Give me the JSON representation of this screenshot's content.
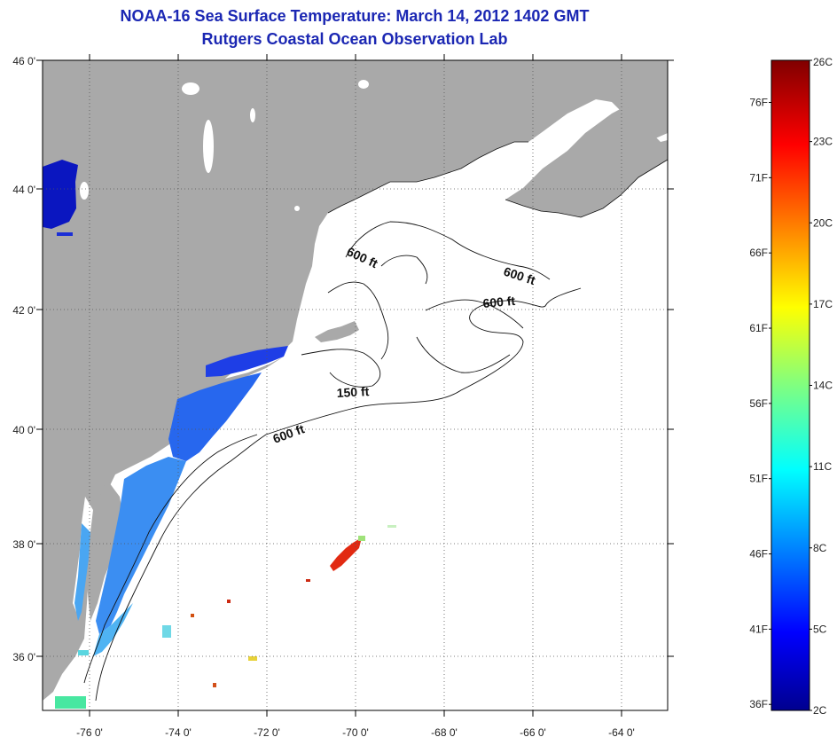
{
  "header": {
    "title": "NOAA-16 Sea Surface Temperature:  March 14, 2012 1402 GMT",
    "subtitle": "Rutgers Coastal Ocean Observation Lab"
  },
  "map": {
    "lon_range": [
      -77,
      -63
    ],
    "lat_range": [
      35,
      46
    ],
    "x_ticks": [
      "-76 0'",
      "-74 0'",
      "-72 0'",
      "-70 0'",
      "-68 0'",
      "-66 0'",
      "-64 0'"
    ],
    "y_ticks": [
      "46 0'",
      "44 0'",
      "42 0'",
      "40 0'",
      "38 0'",
      "36 0'"
    ],
    "contour_labels": [
      "600 ft",
      "600 ft",
      "600 ft",
      "150 ft",
      "600 ft"
    ],
    "colors": {
      "land": "#a9a9a9",
      "ocean": "#ffffff",
      "grid": "#555555"
    }
  },
  "colorbar": {
    "fahrenheit_labels": [
      "76F",
      "71F",
      "66F",
      "61F",
      "56F",
      "51F",
      "46F",
      "41F",
      "36F"
    ],
    "celsius_labels": [
      "26C",
      "23C",
      "20C",
      "17C",
      "14C",
      "11C",
      "8C",
      "5C",
      "2C"
    ],
    "range_c": [
      2,
      26
    ]
  }
}
